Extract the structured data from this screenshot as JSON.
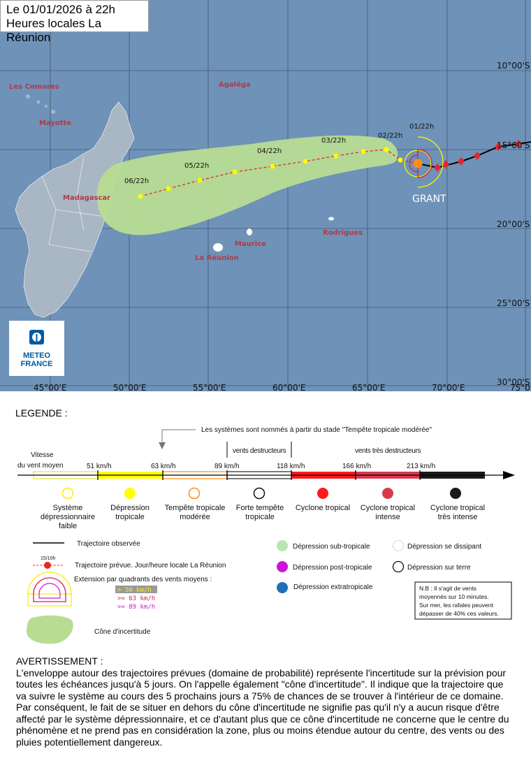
{
  "header": {
    "date_line": "Le 01/01/2026 à 22h",
    "time_zone": "Heures locales La Réunion"
  },
  "map": {
    "storm_name": "GRANT",
    "longitude_labels": [
      "45°00'E",
      "50°00'E",
      "55°00'E",
      "60°00'E",
      "65°00'E",
      "70°00'E",
      "75°0"
    ],
    "latitude_labels": [
      "10°00'S",
      "15°00'S",
      "20°00'S",
      "25°00'S",
      "30°00'S"
    ],
    "place_labels": [
      "Les Comores",
      "Mayotte",
      "Agaléga",
      "Madagascar",
      "Maurice",
      "La Réunion",
      "Rodrigues"
    ],
    "forecast_labels": [
      "01/22h",
      "02/22h",
      "03/22h",
      "04/22h",
      "05/22h",
      "06/22h"
    ],
    "colors": {
      "sea": "#6f92b8",
      "land": "#a9b6c3",
      "cone": "#b7dc92",
      "observed_track": "#000000",
      "forecast_track": "#e53030"
    }
  },
  "logo": {
    "line1": "METEO",
    "line2": "FRANCE"
  },
  "legend": {
    "title": "LEGENDE :",
    "naming_note": "Les systèmes sont nommés à partir du stade \"Tempête tropicale modérée\"",
    "destructive_winds": "vents destructeurs",
    "very_destructive_winds": "vents très destructeurs",
    "speed_label_line1": "Vitesse",
    "speed_label_line2": "du vent moyen",
    "thresholds": [
      "51 km/h",
      "63 km/h",
      "89 km/h",
      "118 km/h",
      "166 km/h",
      "213 km/h"
    ],
    "categories": [
      {
        "line1": "Système",
        "line2": "dépressionnaire",
        "line3": "faible",
        "color": "#ffffff",
        "ring": "#ffee00"
      },
      {
        "line1": "Dépression",
        "line2": "tropicale",
        "line3": "",
        "color": "#ffff00",
        "ring": "#ffff00"
      },
      {
        "line1": "Tempête tropicale",
        "line2": "modérée",
        "line3": "",
        "color": "#ffffff",
        "ring": "#ff8c1a"
      },
      {
        "line1": "Forte tempête",
        "line2": "tropicale",
        "line3": "",
        "color": "#ffffff",
        "ring": "#111111"
      },
      {
        "line1": "Cyclone tropical",
        "line2": "",
        "line3": "",
        "color": "#ff1a1a",
        "ring": "#ff1a1a"
      },
      {
        "line1": "Cyclone tropical",
        "line2": "intense",
        "line3": "",
        "color": "#d9384b",
        "ring": "#d9384b"
      },
      {
        "line1": "Cyclone tropical",
        "line2": "très intense",
        "line3": "",
        "color": "#1a1a1a",
        "ring": "#1a1a1a"
      }
    ],
    "observed_track": "Trajectoire observée",
    "forecast_track": "Trajectoire prévue. Jour/heure locale La Réunion",
    "forecast_sample": "15/10h",
    "quadrant_extension": "Extension par quadrants des vents moyens :",
    "quadrant_items": [
      "> 50 km/h",
      ">= 63 km/h",
      ">= 89 km/h"
    ],
    "cone": "Cône d'incertitude",
    "other_types": [
      {
        "label": "Dépression sub-tropicale",
        "color": "#b9e6b0"
      },
      {
        "label": "Dépression se dissipant",
        "color": "#ffffff"
      },
      {
        "label": "Dépression post-tropicale",
        "color": "#cc14d9"
      },
      {
        "label": "Dépression sur terre",
        "color": "#ffffff"
      },
      {
        "label": "Dépression extratropicale",
        "color": "#1f6fb5"
      }
    ],
    "nb_line1": "N.B : Il s'agit de vents",
    "nb_line2": "moyennés sur 10 minutes.",
    "nb_line3": "Sur mer, les rafales peuvent",
    "nb_line4": "dépasser de 40% ces valeurs."
  },
  "warning": {
    "title": "AVERTISSEMENT :",
    "paragraph1": "L'enveloppe autour des trajectoires prévues (domaine de probabilité) représente l'incertitude sur la prévision pour toutes les échéances jusqu'à 5 jours. On l'appelle également \"cône d'incertitude\". Il indique que la trajectoire que va suivre le système au cours des 5 prochains jours a 75% de chances de se trouver à l'intérieur de ce domaine.",
    "paragraph2": "Par conséquent, le fait de se situer en dehors du cône d'incertitude ne signifie pas qu'il n'y a aucun risque d'être affecté par le système dépressionnaire, et ce d'autant plus que ce cône d'incertitude ne concerne que le centre du phénomène et ne prend pas en considération la zone, plus ou moins étendue autour du centre, des vents ou des pluies potentiellement dangereux."
  }
}
